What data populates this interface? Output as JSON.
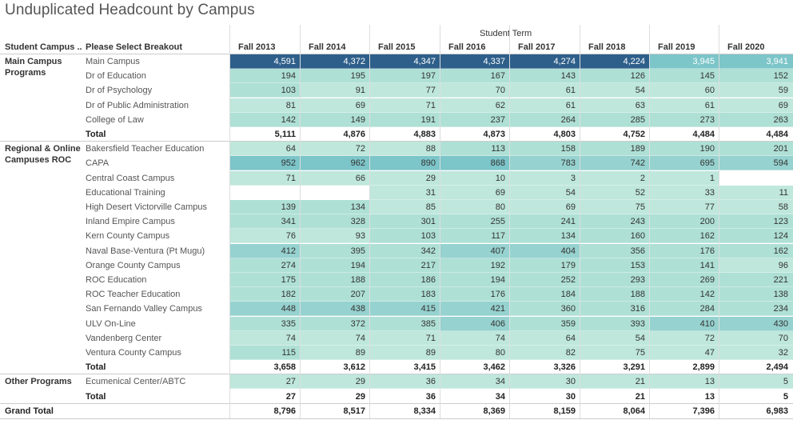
{
  "title": "Unduplicated Headcount by Campus",
  "header": {
    "col_group_label": "Student Campus ..",
    "col_breakout_label": "Please Select Breakout",
    "term_label": "Student Term",
    "terms": [
      "Fall 2013",
      "Fall 2014",
      "Fall 2015",
      "Fall 2016",
      "Fall 2017",
      "Fall 2018",
      "Fall 2019",
      "Fall 2020"
    ]
  },
  "groups": [
    {
      "name": "Main Campus Programs",
      "rows": [
        {
          "label": "Main Campus",
          "values": [
            "4,591",
            "4,372",
            "4,347",
            "4,337",
            "4,274",
            "4,224",
            "3,945",
            "3,941"
          ]
        },
        {
          "label": "Dr of Education",
          "values": [
            "194",
            "195",
            "197",
            "167",
            "143",
            "126",
            "145",
            "152"
          ]
        },
        {
          "label": "Dr of Psychology",
          "values": [
            "103",
            "91",
            "77",
            "70",
            "61",
            "54",
            "60",
            "59"
          ]
        },
        {
          "label": "Dr of Public Administration",
          "values": [
            "81",
            "69",
            "71",
            "62",
            "61",
            "63",
            "61",
            "69"
          ]
        },
        {
          "label": "College of Law",
          "values": [
            "142",
            "149",
            "191",
            "237",
            "264",
            "285",
            "273",
            "263"
          ]
        }
      ],
      "total": {
        "label": "Total",
        "values": [
          "5,111",
          "4,876",
          "4,883",
          "4,873",
          "4,803",
          "4,752",
          "4,484",
          "4,484"
        ]
      }
    },
    {
      "name": "Regional & Online Campuses ROC",
      "rows": [
        {
          "label": "Bakersfield Teacher Education",
          "values": [
            "64",
            "72",
            "88",
            "113",
            "158",
            "189",
            "190",
            "201"
          ]
        },
        {
          "label": "CAPA",
          "values": [
            "952",
            "962",
            "890",
            "868",
            "783",
            "742",
            "695",
            "594"
          ]
        },
        {
          "label": "Central Coast Campus",
          "values": [
            "71",
            "66",
            "29",
            "10",
            "3",
            "2",
            "1",
            ""
          ]
        },
        {
          "label": "Educational Training",
          "values": [
            "",
            "",
            "31",
            "69",
            "54",
            "52",
            "33",
            "11"
          ]
        },
        {
          "label": "High Desert Victorville Campus",
          "values": [
            "139",
            "134",
            "85",
            "80",
            "69",
            "75",
            "77",
            "58"
          ]
        },
        {
          "label": "Inland Empire Campus",
          "values": [
            "341",
            "328",
            "301",
            "255",
            "241",
            "243",
            "200",
            "123"
          ]
        },
        {
          "label": "Kern County Campus",
          "values": [
            "76",
            "93",
            "103",
            "117",
            "134",
            "160",
            "162",
            "124"
          ]
        },
        {
          "label": "Naval Base-Ventura (Pt Mugu)",
          "values": [
            "412",
            "395",
            "342",
            "407",
            "404",
            "356",
            "176",
            "162"
          ]
        },
        {
          "label": "Orange County Campus",
          "values": [
            "274",
            "194",
            "217",
            "192",
            "179",
            "153",
            "141",
            "96"
          ]
        },
        {
          "label": "ROC Education",
          "values": [
            "175",
            "188",
            "186",
            "194",
            "252",
            "293",
            "269",
            "221"
          ]
        },
        {
          "label": "ROC Teacher Education",
          "values": [
            "182",
            "207",
            "183",
            "176",
            "184",
            "188",
            "142",
            "138"
          ]
        },
        {
          "label": "San Fernando Valley Campus",
          "values": [
            "448",
            "438",
            "415",
            "421",
            "360",
            "316",
            "284",
            "234"
          ]
        },
        {
          "label": "ULV On-Line",
          "values": [
            "335",
            "372",
            "385",
            "406",
            "359",
            "393",
            "410",
            "430"
          ]
        },
        {
          "label": "Vandenberg Center",
          "values": [
            "74",
            "74",
            "71",
            "74",
            "64",
            "54",
            "72",
            "70"
          ]
        },
        {
          "label": "Ventura County Campus",
          "values": [
            "115",
            "89",
            "89",
            "80",
            "82",
            "75",
            "47",
            "32"
          ]
        }
      ],
      "total": {
        "label": "Total",
        "values": [
          "3,658",
          "3,612",
          "3,415",
          "3,462",
          "3,326",
          "3,291",
          "2,899",
          "2,494"
        ]
      }
    },
    {
      "name": "Other Programs",
      "rows": [
        {
          "label": "Ecumenical Center/ABTC",
          "values": [
            "27",
            "29",
            "36",
            "34",
            "30",
            "21",
            "13",
            "5"
          ]
        }
      ],
      "total": {
        "label": "Total",
        "values": [
          "27",
          "29",
          "36",
          "34",
          "30",
          "21",
          "13",
          "5"
        ]
      }
    }
  ],
  "grand_total": {
    "label": "Grand Total",
    "values": [
      "8,796",
      "8,517",
      "8,334",
      "8,369",
      "8,159",
      "8,064",
      "7,396",
      "6,983"
    ]
  },
  "colors": {
    "main_campus": "#2e5f8a",
    "high": "#7cc5c9",
    "mid": "#96d2cf",
    "low": "#afe0d6",
    "lowest": "#bfe7dc"
  }
}
